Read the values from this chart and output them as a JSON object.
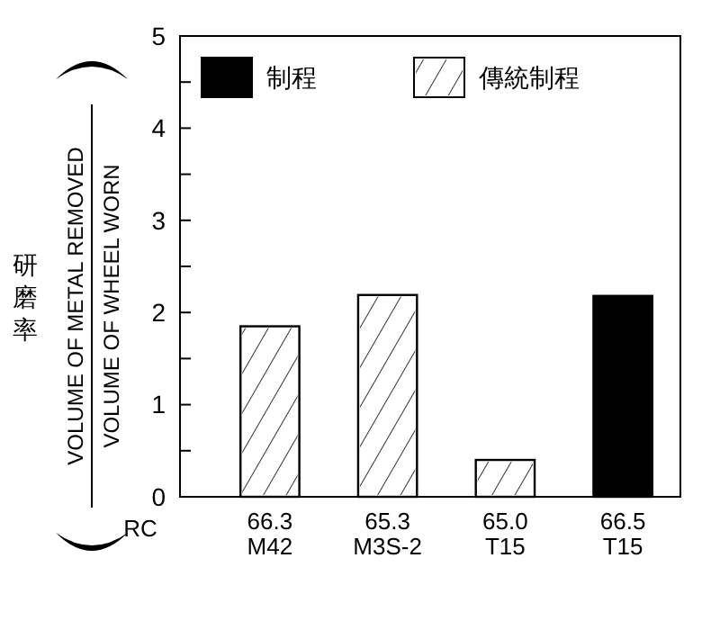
{
  "chart_data": {
    "type": "bar",
    "categories": [
      "66.3\nM42",
      "65.3\nM3S-2",
      "65.0\nT15",
      "66.5\nT15"
    ],
    "series": [
      {
        "name": "制程",
        "color": "#000000",
        "values": [
          null,
          null,
          null,
          2.18
        ]
      },
      {
        "name": "傳統制程",
        "color": "#ffffff",
        "values": [
          1.85,
          2.19,
          0.4,
          null
        ]
      }
    ],
    "ylabel": "研磨率",
    "xlabel": "RC",
    "annotations": [
      "VOLUME OF METAL REMOVED",
      "VOLUME OF WHEEL WORN"
    ],
    "ylim": [
      0,
      5
    ],
    "yticks": [
      0,
      {
        "value": 0.5,
        "label": null
      },
      1,
      {
        "value": 1.5,
        "label": null
      },
      2,
      {
        "value": 2.5,
        "label": null
      },
      3,
      {
        "value": 3.5,
        "label": null
      },
      4,
      {
        "value": 4.5,
        "label": null
      },
      5
    ],
    "legend": "top left",
    "grid": false
  }
}
